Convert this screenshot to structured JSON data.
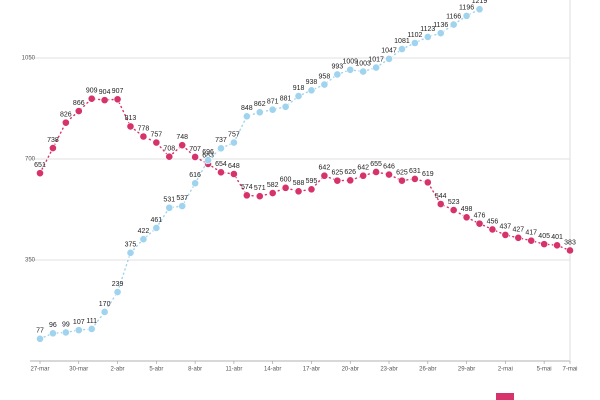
{
  "chart_data": {
    "type": "line",
    "categories": [
      "27-mar",
      null,
      null,
      "30-mar",
      null,
      null,
      "2-abr",
      null,
      null,
      "5-abr",
      null,
      null,
      "8-abr",
      null,
      null,
      "11-abr",
      null,
      null,
      "14-abr",
      null,
      null,
      "17-abr",
      null,
      null,
      "20-abr",
      null,
      null,
      "23-abr",
      null,
      null,
      "26-abr",
      null,
      null,
      "29-abr",
      null,
      null,
      "2-mai",
      null,
      null,
      "5-mai",
      null,
      "7-mai"
    ],
    "series": [
      {
        "color": "#d6336c",
        "values": [
          651,
          738,
          826,
          866,
          909,
          904,
          907,
          813,
          778,
          757,
          708,
          748,
          707,
          683,
          654,
          648,
          574,
          571,
          582,
          600,
          588,
          595,
          642,
          625,
          626,
          642,
          655,
          646,
          625,
          631,
          619,
          544,
          523,
          498,
          476,
          456,
          437,
          427,
          417,
          405,
          401,
          383
        ]
      },
      {
        "color": "#9fd3ee",
        "values": [
          77,
          96,
          99,
          107,
          111,
          170,
          239,
          375,
          422,
          461,
          531,
          537,
          616,
          696,
          737,
          757,
          848,
          862,
          871,
          881,
          918,
          938,
          958,
          993,
          1009,
          1003,
          1017,
          1047,
          1081,
          1102,
          1123,
          1136,
          1166,
          1196,
          1219,
          null,
          null,
          null,
          null,
          null,
          null,
          null
        ]
      }
    ],
    "ylim": [
      0,
      1250
    ],
    "yticks": [
      350,
      700,
      1050
    ],
    "grid": true
  }
}
